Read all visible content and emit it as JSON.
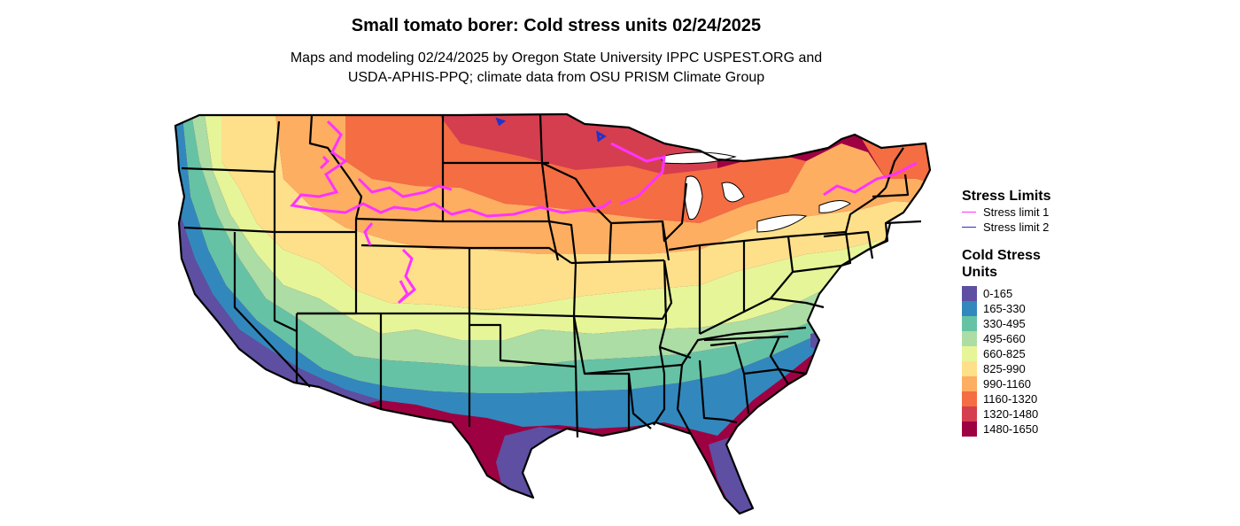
{
  "title": "Small tomato borer: Cold stress units 02/24/2025",
  "subtitle_line1": "Maps and modeling 02/24/2025 by Oregon State University IPPC USPEST.ORG and",
  "subtitle_line2": "USDA-APHIS-PPQ; climate data from OSU PRISM Climate Group",
  "legend": {
    "stress_title": "Stress Limits",
    "stress_items": [
      {
        "label": "Stress limit 1",
        "color": "#ff33ff"
      },
      {
        "label": "Stress limit 2",
        "color": "#2233cc"
      }
    ],
    "cold_title": "Cold Stress Units",
    "classes": [
      {
        "label": "0-165",
        "color": "#5e4fa2"
      },
      {
        "label": "165-330",
        "color": "#3288bd"
      },
      {
        "label": "330-495",
        "color": "#66c2a5"
      },
      {
        "label": "495-660",
        "color": "#abdda4"
      },
      {
        "label": "660-825",
        "color": "#e6f598"
      },
      {
        "label": "825-990",
        "color": "#fee08b"
      },
      {
        "label": "990-1160",
        "color": "#fdae61"
      },
      {
        "label": "1160-1320",
        "color": "#f46d43"
      },
      {
        "label": "1320-1480",
        "color": "#d53e4f"
      },
      {
        "label": "1480-1650",
        "color": "#9e0142"
      }
    ]
  }
}
